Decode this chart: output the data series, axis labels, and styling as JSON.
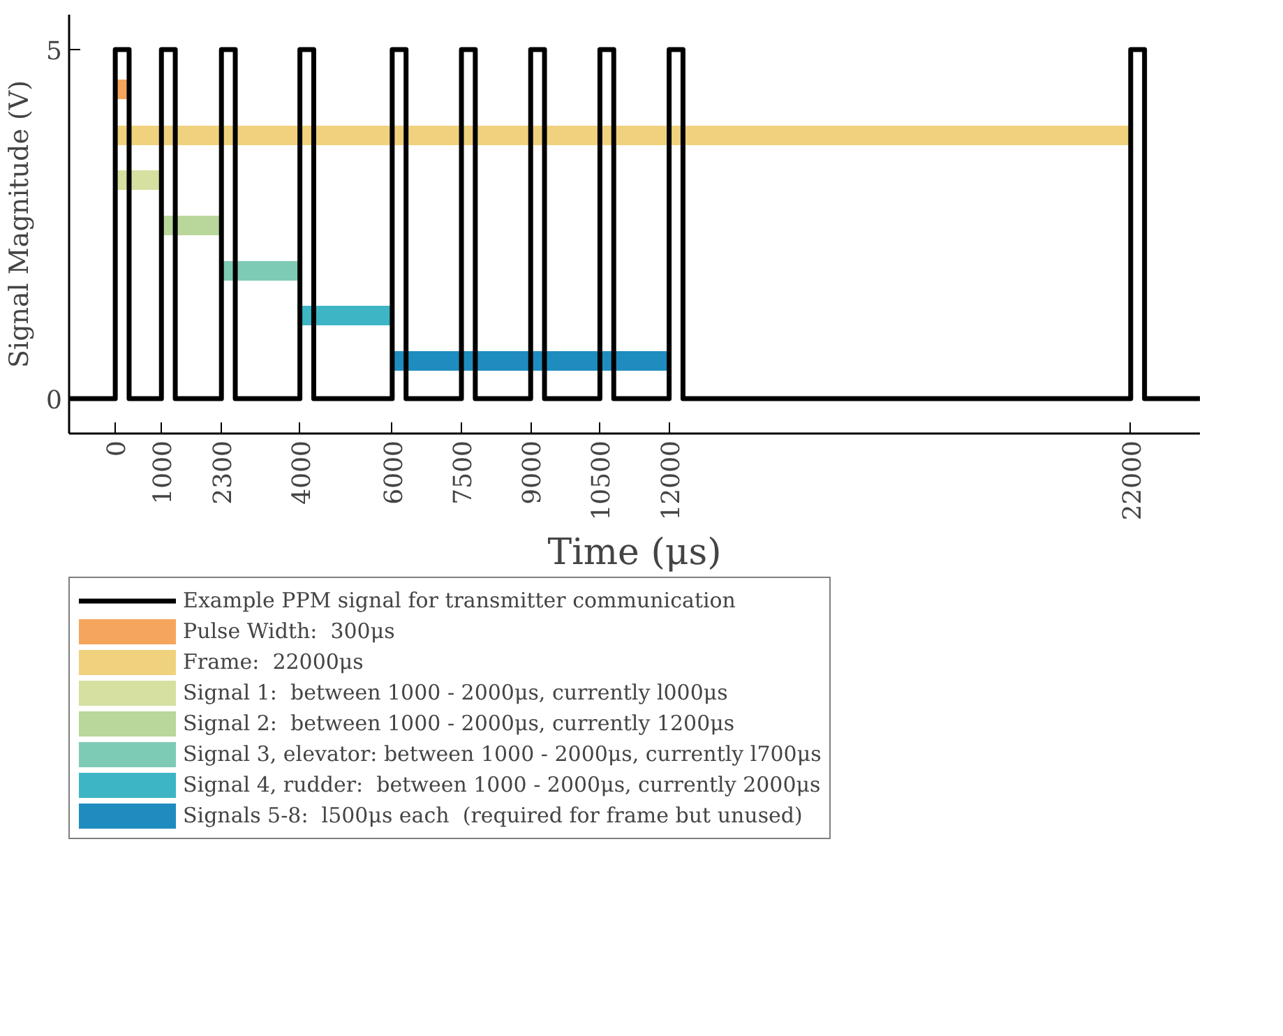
{
  "chart_data": {
    "type": "line",
    "xlabel": "Time (μs)",
    "ylabel": "Signal Magnitude (V)",
    "xlim": [
      -1000,
      23500
    ],
    "ylim": [
      -0.5,
      5.5
    ],
    "xticks": [
      0,
      1000,
      2300,
      4000,
      6000,
      7500,
      9000,
      10500,
      12000,
      22000
    ],
    "yticks": [
      0,
      5
    ],
    "grid": false,
    "legend": "bottom",
    "series": [
      {
        "type": "step",
        "name": "Example PPM signal for transmitter communication",
        "color": "#000000",
        "x": [
          -1000,
          0,
          300,
          1000,
          1300,
          2300,
          2600,
          4000,
          4300,
          6000,
          6300,
          7500,
          7800,
          9000,
          9300,
          10500,
          10800,
          12000,
          12300,
          22000,
          22300,
          23500
        ],
        "values": [
          0,
          5,
          0,
          5,
          0,
          5,
          0,
          5,
          0,
          5,
          0,
          5,
          0,
          5,
          0,
          5,
          0,
          5,
          0,
          5,
          0,
          0
        ]
      },
      {
        "name": "Pulse Width:  300μs",
        "color": "#f5a55c",
        "x": [
          0,
          300
        ],
        "values": [
          4.43,
          4.43
        ]
      },
      {
        "name": "Frame:  22000μs",
        "color": "#f0d27e",
        "x": [
          0,
          22000
        ],
        "values": [
          3.77,
          3.77
        ]
      },
      {
        "name": "Signal 1:  between 1000 - 2000μs, currently l000μs",
        "color": "#d6e0a0",
        "x": [
          0,
          1000
        ],
        "values": [
          3.13,
          3.13
        ]
      },
      {
        "name": "Signal 2:  between 1000 - 2000μs, currently 1200μs",
        "color": "#b9d79a",
        "x": [
          1000,
          2300
        ],
        "values": [
          2.48,
          2.48
        ]
      },
      {
        "name": "Signal 3, elevator: between 1000 - 2000μs, currently l700μs",
        "color": "#7ecbb5",
        "x": [
          2300,
          4000
        ],
        "values": [
          1.83,
          1.83
        ]
      },
      {
        "name": "Signal 4, rudder:  between 1000 - 2000μs, currently 2000μs",
        "color": "#3db5c4",
        "x": [
          4000,
          6000
        ],
        "values": [
          1.19,
          1.19
        ]
      },
      {
        "name": "Signals 5-8:  l500μs each  (required for frame but unused)",
        "color": "#1f8cc0",
        "x": [
          6000,
          12000
        ],
        "values": [
          0.54,
          0.54
        ]
      }
    ]
  }
}
